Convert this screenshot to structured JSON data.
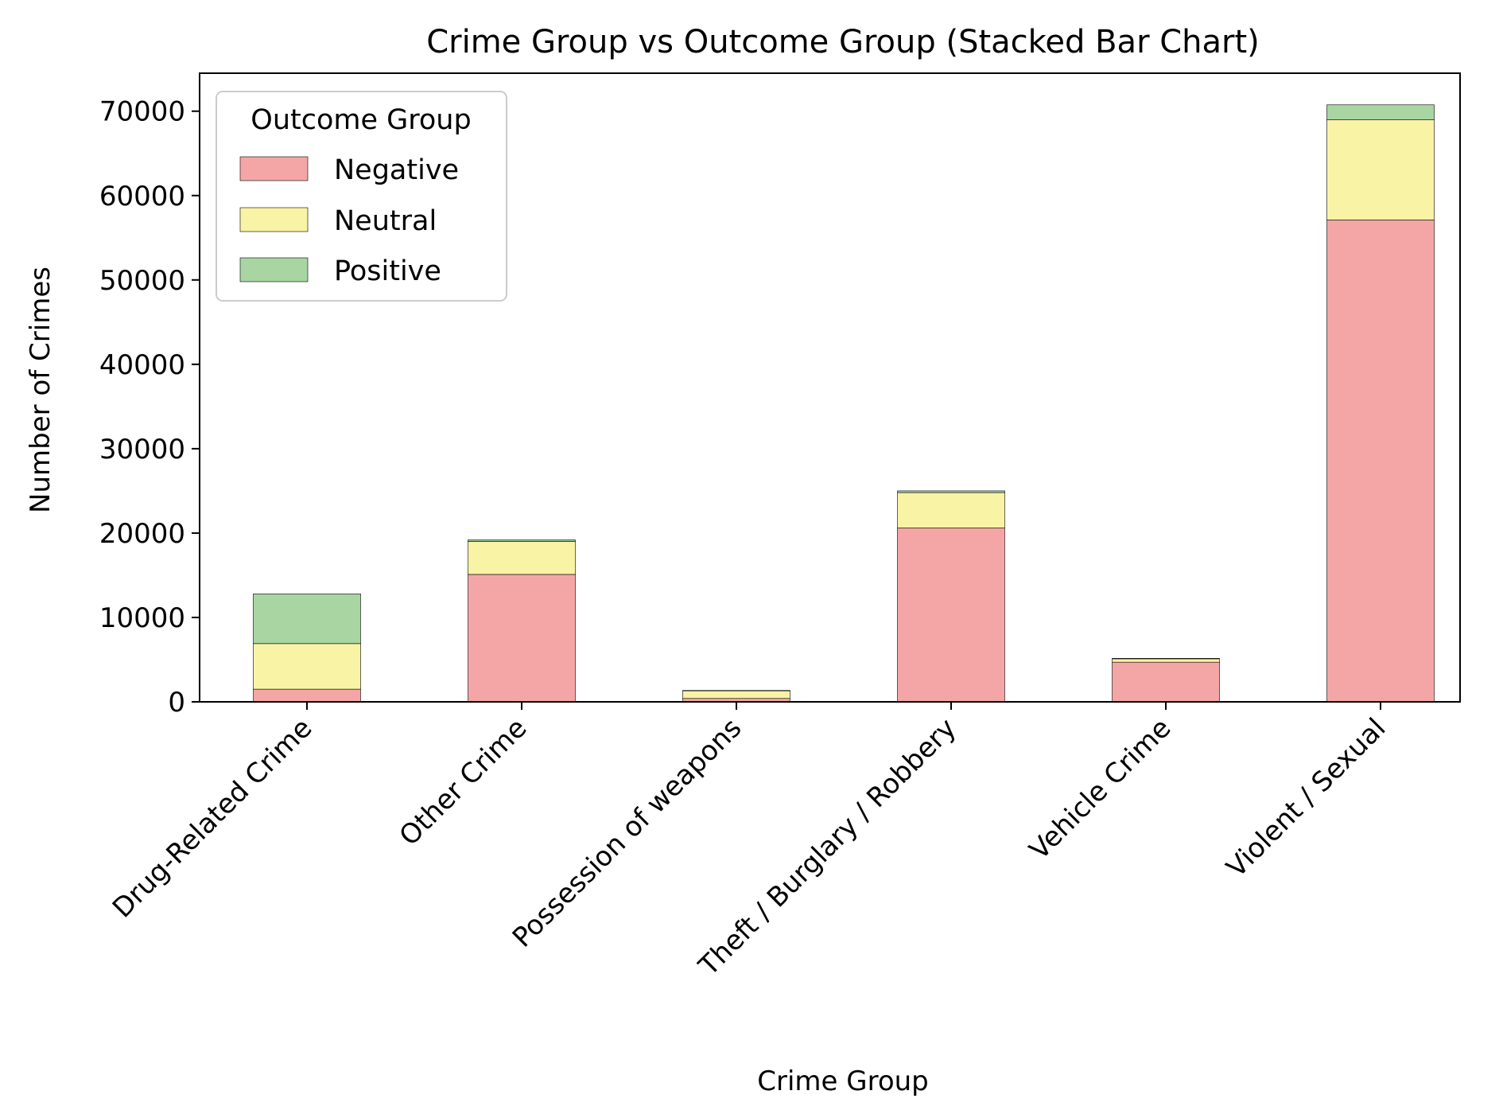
{
  "chart_data": {
    "type": "bar",
    "stacked": true,
    "title": "Crime Group vs Outcome Group (Stacked Bar Chart)",
    "xlabel": "Crime Group",
    "ylabel": "Number of Crimes",
    "ylim": [
      0,
      74500
    ],
    "yticks": [
      0,
      10000,
      20000,
      30000,
      40000,
      50000,
      60000,
      70000
    ],
    "grid": false,
    "categories": [
      "Drug-Related Crime",
      "Other Crime",
      "Possession of weapons",
      "Theft / Burglary / Robbery",
      "Vehicle Crime",
      "Violent / Sexual"
    ],
    "legend": {
      "title": "Outcome Group",
      "placement": "top-left"
    },
    "series": [
      {
        "name": "Negative",
        "color": "#f4a6a6",
        "values": [
          1500,
          15100,
          400,
          20600,
          4700,
          57100
        ]
      },
      {
        "name": "Neutral",
        "color": "#f9f3a5",
        "values": [
          5400,
          3900,
          900,
          4200,
          400,
          11900
        ]
      },
      {
        "name": "Positive",
        "color": "#a8d5a2",
        "values": [
          5900,
          200,
          50,
          200,
          50,
          1750
        ]
      }
    ]
  }
}
